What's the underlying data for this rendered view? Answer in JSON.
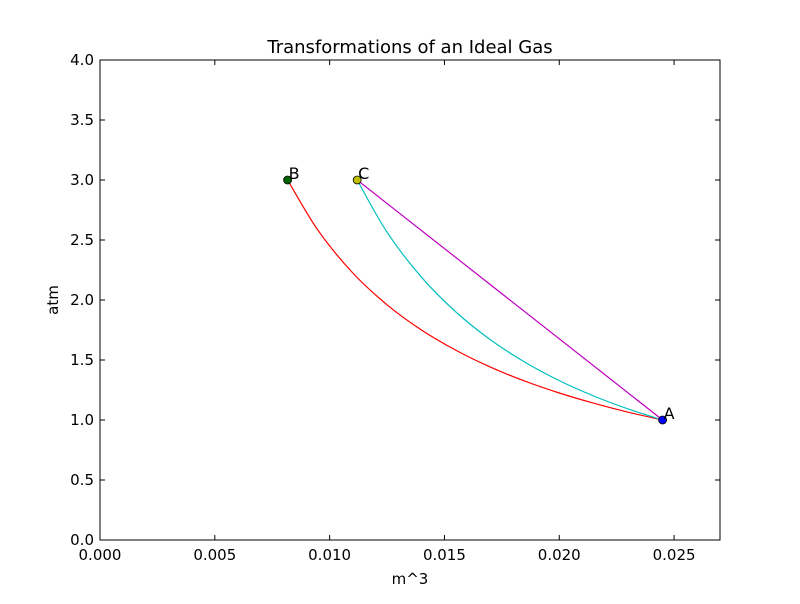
{
  "chart_data": {
    "type": "line",
    "title": "Transformations of an Ideal Gas",
    "xlabel": "m^3",
    "ylabel": "atm",
    "xlim": [
      0.0,
      0.027
    ],
    "ylim": [
      0.0,
      4.0
    ],
    "grid": false,
    "legend": "none",
    "xticks": [
      {
        "value": 0.0,
        "label": "0.000"
      },
      {
        "value": 0.005,
        "label": "0.005"
      },
      {
        "value": 0.01,
        "label": "0.010"
      },
      {
        "value": 0.015,
        "label": "0.015"
      },
      {
        "value": 0.02,
        "label": "0.020"
      },
      {
        "value": 0.025,
        "label": "0.025"
      }
    ],
    "yticks": [
      {
        "value": 0.0,
        "label": "0.0"
      },
      {
        "value": 0.5,
        "label": "0.5"
      },
      {
        "value": 1.0,
        "label": "1.0"
      },
      {
        "value": 1.5,
        "label": "1.5"
      },
      {
        "value": 2.0,
        "label": "2.0"
      },
      {
        "value": 2.5,
        "label": "2.5"
      },
      {
        "value": 3.0,
        "label": "3.0"
      },
      {
        "value": 3.5,
        "label": "3.5"
      },
      {
        "value": 4.0,
        "label": "4.0"
      }
    ],
    "points": [
      {
        "label": "A",
        "x": 0.0245,
        "y": 1.0,
        "color": "#0000ff"
      },
      {
        "label": "B",
        "x": 0.00817,
        "y": 3.0,
        "color": "#006400"
      },
      {
        "label": "C",
        "x": 0.0112,
        "y": 3.0,
        "color": "#bfbf00"
      }
    ],
    "series": [
      {
        "color": "#ff0000",
        "x": [
          0.0245,
          0.023,
          0.0215,
          0.02,
          0.0185,
          0.017,
          0.0155,
          0.014,
          0.0125,
          0.011,
          0.0095,
          0.00817
        ],
        "y": [
          1.0,
          1.065,
          1.14,
          1.225,
          1.324,
          1.441,
          1.581,
          1.75,
          1.96,
          2.227,
          2.579,
          3.0
        ]
      },
      {
        "color": "#00bfbf",
        "x": [
          0.0245,
          0.023,
          0.0215,
          0.02,
          0.0185,
          0.017,
          0.0155,
          0.014,
          0.0125,
          0.0112
        ],
        "y": [
          1.0,
          1.092,
          1.2,
          1.328,
          1.482,
          1.669,
          1.9,
          2.19,
          2.565,
          3.0
        ]
      },
      {
        "color": "#bf00bf",
        "x": [
          0.0245,
          0.0112
        ],
        "y": [
          1.0,
          3.0
        ]
      }
    ]
  }
}
